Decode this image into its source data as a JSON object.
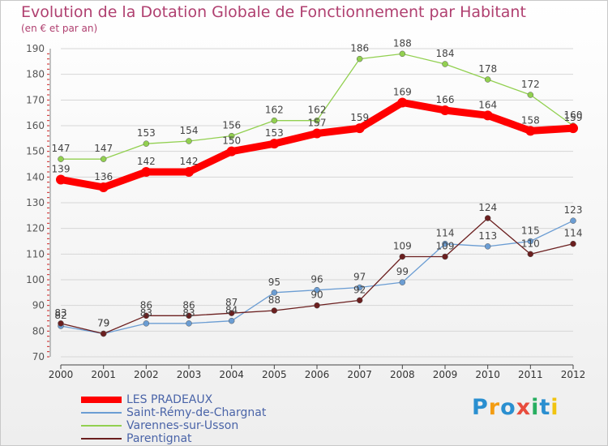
{
  "title": "Evolution de la Dotation Globale de Fonctionnement par Habitant",
  "subtitle": "(en € et par an)",
  "chart_data": {
    "type": "line",
    "title": "Evolution de la Dotation Globale de Fonctionnement par Habitant",
    "ylabel": "(en € et par an)",
    "xlabel": "",
    "x": [
      "2000",
      "2001",
      "2002",
      "2003",
      "2004",
      "2005",
      "2006",
      "2007",
      "2008",
      "2009",
      "2010",
      "2011",
      "2012"
    ],
    "ylim": [
      70,
      190
    ],
    "yticks": [
      "70",
      "80",
      "90",
      "100",
      "110",
      "120",
      "130",
      "140",
      "150",
      "160",
      "170",
      "180",
      "190"
    ],
    "grid": "horizontal",
    "series": [
      {
        "name": "LES PRADEAUX",
        "color": "#ff0000",
        "values": [
          139,
          136,
          142,
          142,
          150,
          153,
          157,
          159,
          169,
          166,
          164,
          158,
          159
        ]
      },
      {
        "name": "Saint-Rémy-de-Chargnat",
        "color": "#6b9dd3",
        "values": [
          82,
          79,
          83,
          83,
          84,
          95,
          96,
          97,
          99,
          114,
          113,
          115,
          123
        ]
      },
      {
        "name": "Varennes-sur-Usson",
        "color": "#92d050",
        "values": [
          147,
          147,
          153,
          154,
          156,
          162,
          162,
          186,
          188,
          184,
          178,
          172,
          160
        ]
      },
      {
        "name": "Parentignat",
        "color": "#6b1f1f",
        "values": [
          83,
          79,
          86,
          86,
          87,
          88,
          90,
          92,
          109,
          109,
          124,
          110,
          114
        ]
      }
    ]
  },
  "logo": {
    "letters": [
      "P",
      "r",
      "o",
      "x",
      "i",
      "t",
      "i"
    ],
    "colors": [
      "#2a8fd0",
      "#f39c12",
      "#2a8fd0",
      "#e84c3d",
      "#27ae60",
      "#2a8fd0",
      "#f1c40f"
    ]
  }
}
